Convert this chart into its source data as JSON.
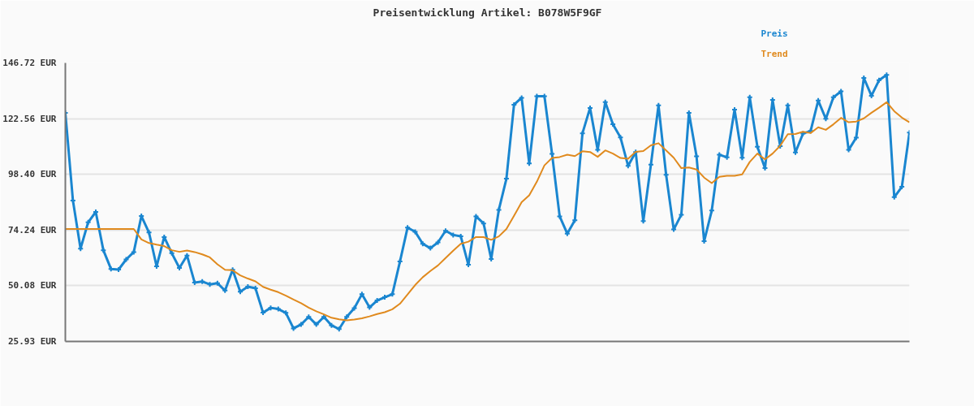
{
  "chart_data": {
    "type": "line",
    "title": "Preisentwicklung Artikel: B078W5F9GF",
    "categories": [
      null,
      null,
      null,
      null,
      null,
      null,
      null,
      null,
      null,
      null,
      null,
      null,
      null,
      null,
      null,
      null,
      null,
      null,
      null,
      null,
      null,
      null,
      null,
      null,
      null,
      null,
      null,
      null,
      null,
      null,
      null,
      null,
      null,
      null,
      null,
      null,
      null,
      null,
      null,
      null,
      null,
      null,
      null,
      null,
      null,
      null,
      null,
      null,
      null,
      null,
      null,
      null,
      null,
      null,
      null,
      null,
      null,
      null,
      null,
      null,
      null,
      null,
      null,
      null,
      null,
      null,
      null,
      null,
      null,
      null,
      null,
      null,
      null,
      null,
      null,
      null,
      null,
      null,
      null,
      null,
      null,
      null,
      null,
      null,
      null,
      null,
      null,
      null,
      null,
      null,
      null,
      null,
      null,
      null,
      null,
      null,
      null,
      null,
      null,
      null,
      null,
      null,
      null,
      null,
      null,
      null,
      null,
      null,
      null,
      null,
      null,
      null
    ],
    "series": [
      {
        "name": "Preis",
        "color": "#1a86d0",
        "values": [
          125.1,
          87.0,
          66.2,
          77.6,
          82.1,
          65.5,
          57.4,
          57.1,
          61.5,
          64.7,
          80.3,
          73.2,
          58.5,
          71.2,
          64.2,
          57.8,
          63.2,
          51.5,
          51.9,
          50.7,
          51.2,
          48.0,
          57.0,
          47.5,
          49.7,
          49.0,
          38.4,
          40.5,
          40.0,
          38.3,
          31.6,
          33.3,
          36.6,
          33.3,
          36.6,
          32.9,
          31.3,
          36.6,
          40.4,
          46.4,
          40.7,
          43.7,
          45.1,
          46.4,
          60.6,
          75.3,
          73.5,
          68.3,
          66.4,
          68.9,
          73.9,
          72.1,
          71.5,
          59.2,
          80.2,
          77.1,
          61.7,
          83.0,
          96.5,
          128.6,
          131.6,
          103.1,
          132.3,
          132.3,
          107.3,
          80.2,
          72.7,
          78.5,
          116.2,
          127.2,
          109.0,
          129.7,
          120.1,
          114.4,
          102.1,
          108.1,
          78.1,
          102.6,
          128.3,
          98.2,
          74.5,
          80.9,
          125.1,
          106.2,
          69.4,
          82.7,
          106.9,
          105.8,
          126.5,
          105.6,
          131.8,
          110.4,
          101.1,
          130.7,
          110.6,
          128.3,
          107.9,
          116.1,
          117.2,
          130.4,
          122.5,
          131.8,
          134.4,
          109.0,
          114.3,
          140.2,
          132.5,
          139.2,
          141.5,
          88.5,
          93.0,
          116.5
        ]
      },
      {
        "name": "Trend",
        "color": "#e08a1e",
        "marker": "none",
        "values": [
          74.7,
          74.7,
          74.7,
          74.7,
          74.7,
          74.7,
          74.7,
          74.7,
          74.7,
          74.7,
          70.2,
          68.6,
          67.9,
          67.3,
          65.5,
          64.8,
          65.4,
          64.7,
          63.7,
          62.4,
          59.4,
          57.0,
          56.8,
          54.6,
          53.2,
          52.0,
          49.6,
          48.4,
          47.3,
          45.8,
          44.1,
          42.5,
          40.6,
          39.0,
          37.7,
          36.2,
          35.5,
          35.1,
          35.4,
          36.0,
          36.8,
          37.8,
          38.6,
          39.9,
          42.3,
          46.3,
          50.4,
          53.8,
          56.5,
          58.9,
          62.1,
          65.3,
          68.3,
          69.2,
          71.2,
          71.2,
          70.0,
          71.5,
          74.7,
          80.4,
          86.3,
          89.3,
          95.2,
          102.3,
          105.5,
          105.9,
          106.9,
          106.3,
          108.4,
          108.1,
          106.0,
          108.8,
          107.4,
          105.5,
          105.2,
          108.2,
          108.5,
          111.0,
          111.9,
          108.8,
          105.6,
          101.1,
          101.4,
          100.5,
          97.0,
          94.6,
          97.3,
          97.8,
          97.8,
          98.4,
          103.8,
          107.4,
          104.9,
          107.4,
          110.8,
          115.8,
          115.9,
          116.9,
          116.3,
          118.8,
          117.7,
          120.1,
          122.9,
          121.0,
          121.3,
          122.7,
          125.1,
          127.3,
          129.7,
          125.8,
          123.0,
          121.0
        ]
      }
    ],
    "ylim": [
      25.93,
      146.72
    ],
    "yticks": [
      {
        "value": 25.93,
        "label": "25.93 EUR"
      },
      {
        "value": 50.08,
        "label": "50.08 EUR"
      },
      {
        "value": 74.24,
        "label": "74.24 EUR"
      },
      {
        "value": 98.4,
        "label": "98.40 EUR"
      },
      {
        "value": 122.56,
        "label": "122.56 EUR"
      },
      {
        "value": 146.72,
        "label": "146.72 EUR"
      }
    ],
    "tick_labels": "y",
    "grid": "y",
    "legend": "top right",
    "marker": "cross",
    "line_style": "solid"
  }
}
